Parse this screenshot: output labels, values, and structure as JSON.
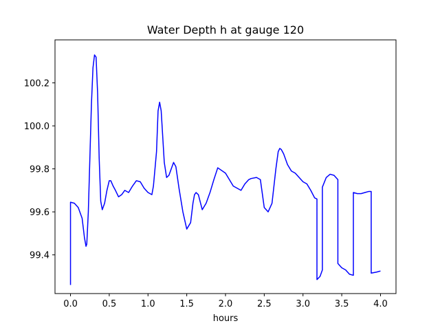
{
  "chart_data": {
    "type": "line",
    "title": "Water Depth h at gauge 120",
    "xlabel": "hours",
    "ylabel": "",
    "xlim": [
      -0.2,
      4.2
    ],
    "ylim": [
      99.22,
      100.4
    ],
    "x_ticks": [
      0.0,
      0.5,
      1.0,
      1.5,
      2.0,
      2.5,
      3.0,
      3.5,
      4.0
    ],
    "x_tick_labels": [
      "0.0",
      "0.5",
      "1.0",
      "1.5",
      "2.0",
      "2.5",
      "3.0",
      "3.5",
      "4.0"
    ],
    "y_ticks": [
      99.4,
      99.6,
      99.8,
      100.0,
      100.2
    ],
    "y_tick_labels": [
      "99.4",
      "99.6",
      "99.8",
      "100.0",
      "100.2"
    ],
    "grid": false,
    "legend": false,
    "series": [
      {
        "color": "#0000ff",
        "x": [
          0.0,
          0.0,
          0.05,
          0.1,
          0.15,
          0.18,
          0.2,
          0.21,
          0.23,
          0.25,
          0.27,
          0.29,
          0.31,
          0.33,
          0.35,
          0.37,
          0.39,
          0.41,
          0.44,
          0.47,
          0.5,
          0.52,
          0.55,
          0.58,
          0.62,
          0.66,
          0.7,
          0.75,
          0.8,
          0.85,
          0.9,
          0.95,
          1.0,
          1.05,
          1.07,
          1.09,
          1.11,
          1.13,
          1.15,
          1.17,
          1.19,
          1.21,
          1.24,
          1.27,
          1.3,
          1.33,
          1.36,
          1.4,
          1.45,
          1.5,
          1.55,
          1.58,
          1.6,
          1.62,
          1.65,
          1.7,
          1.75,
          1.8,
          1.85,
          1.9,
          2.0,
          2.05,
          2.1,
          2.15,
          2.2,
          2.25,
          2.3,
          2.33,
          2.4,
          2.45,
          2.5,
          2.55,
          2.6,
          2.65,
          2.68,
          2.7,
          2.72,
          2.75,
          2.8,
          2.85,
          2.9,
          2.95,
          3.0,
          3.05,
          3.1,
          3.15,
          3.18,
          3.18,
          3.22,
          3.25,
          3.25,
          3.3,
          3.35,
          3.4,
          3.45,
          3.45,
          3.5,
          3.55,
          3.6,
          3.65,
          3.65,
          3.7,
          3.75,
          3.8,
          3.85,
          3.88,
          3.88,
          3.95,
          4.0
        ],
        "y": [
          99.26,
          99.645,
          99.64,
          99.62,
          99.57,
          99.48,
          99.44,
          99.45,
          99.6,
          99.85,
          100.1,
          100.27,
          100.33,
          100.32,
          100.15,
          99.85,
          99.65,
          99.61,
          99.64,
          99.7,
          99.745,
          99.745,
          99.72,
          99.7,
          99.67,
          99.68,
          99.7,
          99.69,
          99.72,
          99.745,
          99.74,
          99.71,
          99.69,
          99.68,
          99.72,
          99.8,
          99.88,
          100.07,
          100.11,
          100.07,
          99.95,
          99.83,
          99.76,
          99.77,
          99.8,
          99.83,
          99.81,
          99.71,
          99.6,
          99.52,
          99.55,
          99.64,
          99.68,
          99.69,
          99.68,
          99.61,
          99.64,
          99.69,
          99.75,
          99.805,
          99.78,
          99.75,
          99.72,
          99.71,
          99.7,
          99.73,
          99.75,
          99.755,
          99.76,
          99.75,
          99.62,
          99.6,
          99.64,
          99.8,
          99.88,
          99.895,
          99.89,
          99.87,
          99.82,
          99.79,
          99.78,
          99.76,
          99.74,
          99.73,
          99.7,
          99.665,
          99.66,
          99.285,
          99.3,
          99.33,
          99.715,
          99.76,
          99.775,
          99.77,
          99.75,
          99.36,
          99.34,
          99.33,
          99.31,
          99.305,
          99.69,
          99.685,
          99.685,
          99.69,
          99.695,
          99.695,
          99.315,
          99.32,
          99.325
        ]
      }
    ]
  }
}
